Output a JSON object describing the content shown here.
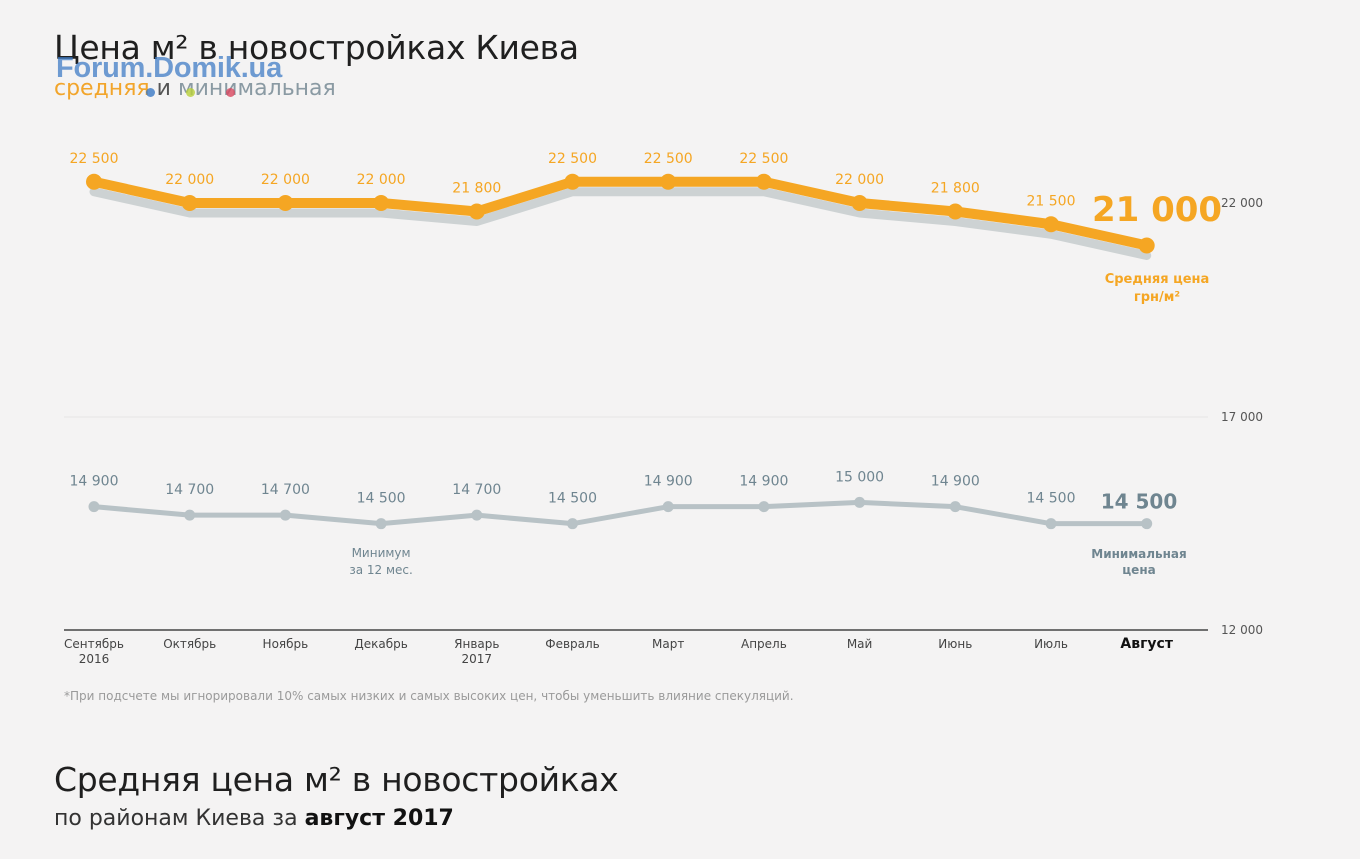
{
  "header": {
    "title": "Цена м² в новостройках Киева",
    "subtitle_avg": "средняя",
    "subtitle_and": "и",
    "subtitle_min": "минимальная",
    "watermark": "Forum.Domik.ua",
    "watermark_dot_colors": [
      "#3a78c4",
      "#b8cf3a",
      "#d9475f"
    ]
  },
  "colors": {
    "average": "#f5a623",
    "average_shadow": "#cdd2d3",
    "minimum": "#b8c2c6",
    "minimum_text": "#6f8590",
    "axis_text": "#555555"
  },
  "chart_data": {
    "type": "line",
    "categories": [
      [
        "Сентябрь",
        "2016"
      ],
      [
        "Октябрь"
      ],
      [
        "Ноябрь"
      ],
      [
        "Декабрь"
      ],
      [
        "Январь",
        "2017"
      ],
      [
        "Февраль"
      ],
      [
        "Март"
      ],
      [
        "Апрель"
      ],
      [
        "Май"
      ],
      [
        "Июнь"
      ],
      [
        "Июль"
      ],
      [
        "Август"
      ]
    ],
    "series": [
      {
        "name": "Средняя цена грн/м²",
        "values": [
          22500,
          22000,
          22000,
          22000,
          21800,
          22500,
          22500,
          22500,
          22000,
          21800,
          21500,
          21000
        ],
        "labels": [
          "22 500",
          "22 000",
          "22 000",
          "22 000",
          "21 800",
          "22 500",
          "22 500",
          "22 500",
          "22 000",
          "21 800",
          "21 500",
          "21 000"
        ]
      },
      {
        "name": "Минимальная цена",
        "values": [
          14900,
          14700,
          14700,
          14500,
          14700,
          14500,
          14900,
          14900,
          15000,
          14900,
          14500,
          14500
        ],
        "labels": [
          "14 900",
          "14 700",
          "14 700",
          "14 500",
          "14 700",
          "14 500",
          "14 900",
          "14 900",
          "15 000",
          "14 900",
          "14 500",
          "14 500"
        ]
      }
    ],
    "y_ticks": [
      {
        "value": 22000,
        "label": "22 000"
      },
      {
        "value": 17000,
        "label": "17 000"
      },
      {
        "value": 12000,
        "label": "12 000"
      }
    ],
    "ylim": [
      12000,
      22500
    ],
    "series_labels": {
      "average": [
        "Средняя цена",
        "грн/м²"
      ],
      "minimum": [
        "Минимальная",
        "цена"
      ]
    },
    "annotation": {
      "index": 3,
      "lines": [
        "Минимум",
        "за 12 мес."
      ]
    }
  },
  "footnote": "*При подсчете мы игнорировали 10% самых низких и самых высоких цен, чтобы уменьшить влияние спекуляций.",
  "section2": {
    "title": "Средняя цена м² в новостройках",
    "subtitle_prefix": "по районам Киева за",
    "subtitle_bold": "август 2017"
  }
}
